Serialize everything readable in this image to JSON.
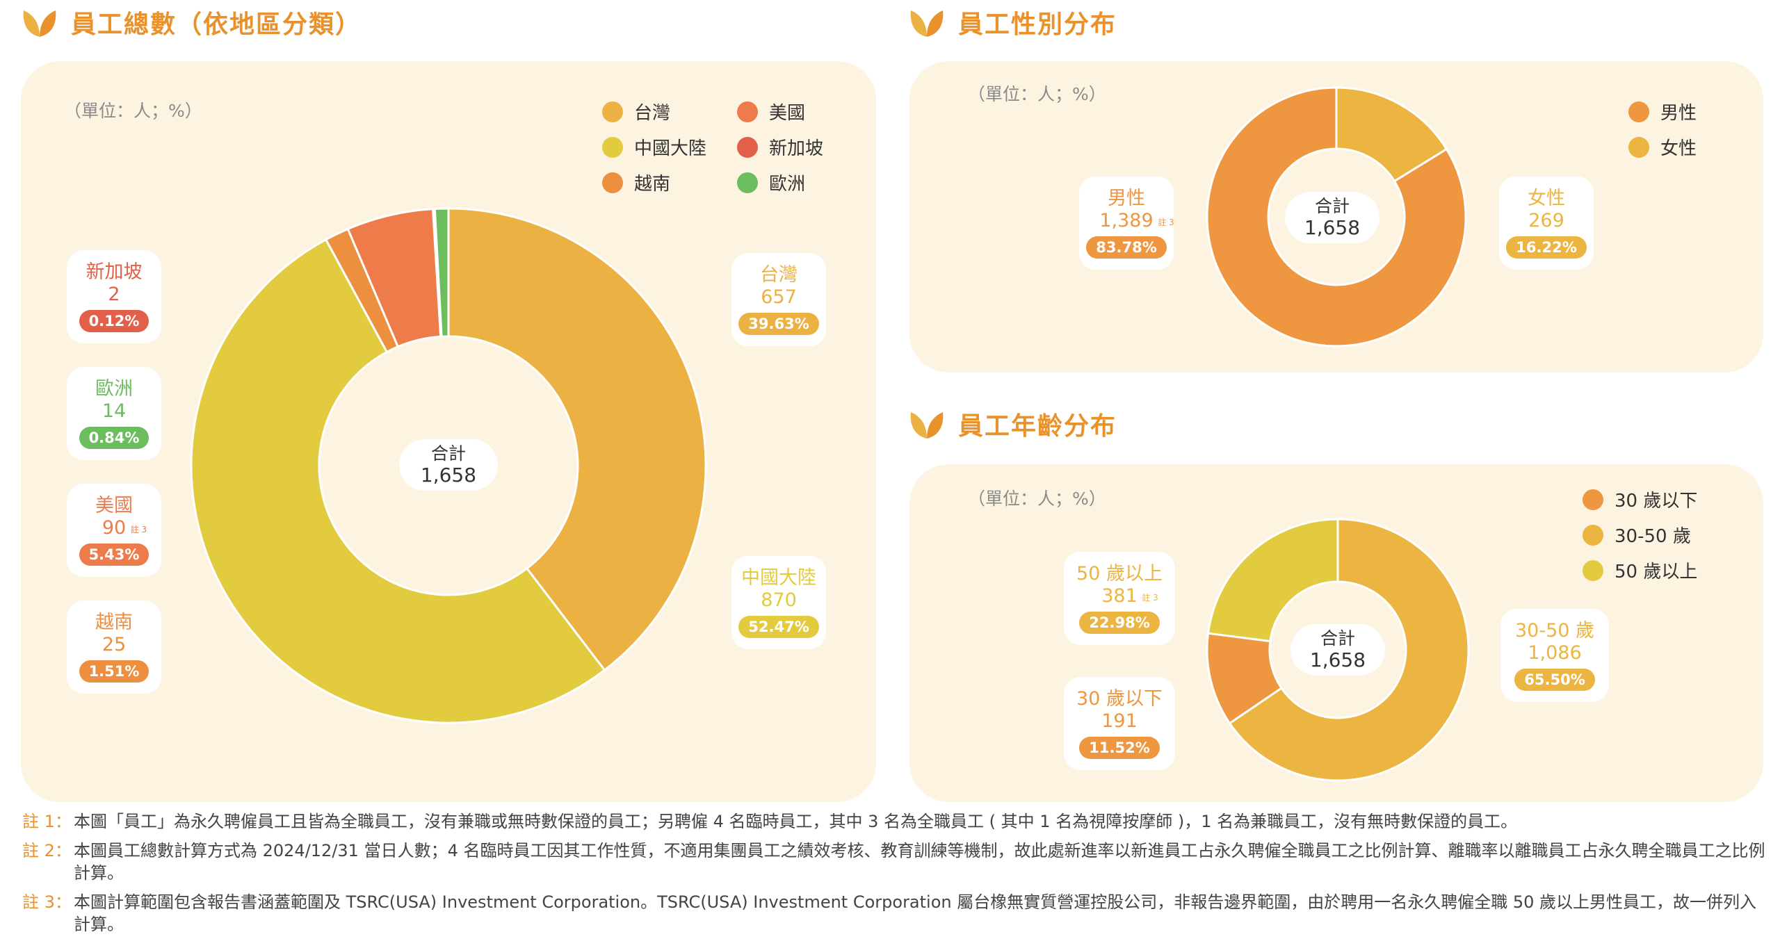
{
  "titles": {
    "region": "員工總數（依地區分類）",
    "gender": "員工性別分布",
    "age": "員工年齡分布"
  },
  "unit_note": "（單位：人；%）",
  "center": {
    "title": "合計",
    "total": "1,658"
  },
  "colors": {
    "accent": "#e9922b",
    "panel": "#fdf3e1",
    "taiwan": "#ebb142",
    "china": "#e3cb3f",
    "vietnam": "#ec8f3e",
    "usa": "#ee7c4b",
    "singapore": "#e2604a",
    "europe": "#6bbd5e",
    "male": "#ee9640",
    "female": "#ecb441",
    "age_under30": "#ee9640",
    "age_30_50": "#ecb441",
    "age_over50": "#e3cb3f"
  },
  "region_legend": [
    "台灣",
    "美國",
    "中國大陸",
    "新加坡",
    "越南",
    "歐洲"
  ],
  "gender_legend": [
    "男性",
    "女性"
  ],
  "age_legend": [
    "30 歲以下",
    "30-50 歲",
    "50 歲以上"
  ],
  "region_callouts": {
    "singapore": {
      "name": "新加坡",
      "count": "2",
      "pct": "0.12%"
    },
    "europe": {
      "name": "歐洲",
      "count": "14",
      "pct": "0.84%"
    },
    "usa": {
      "name": "美國",
      "count": "90",
      "pct": "5.43%",
      "note": "註 3"
    },
    "vietnam": {
      "name": "越南",
      "count": "25",
      "pct": "1.51%"
    },
    "taiwan": {
      "name": "台灣",
      "count": "657",
      "pct": "39.63%"
    },
    "china": {
      "name": "中國大陸",
      "count": "870",
      "pct": "52.47%"
    }
  },
  "gender_callouts": {
    "male": {
      "name": "男性",
      "count": "1,389",
      "pct": "83.78%",
      "note": "註 3"
    },
    "female": {
      "name": "女性",
      "count": "269",
      "pct": "16.22%"
    }
  },
  "age_callouts": {
    "over50": {
      "name": "50 歲以上",
      "count": "381",
      "pct": "22.98%",
      "note": "註 3"
    },
    "under30": {
      "name": "30 歲以下",
      "count": "191",
      "pct": "11.52%"
    },
    "mid": {
      "name": "30-50 歲",
      "count": "1,086",
      "pct": "65.50%"
    }
  },
  "chart_data": [
    {
      "type": "pie",
      "title": "員工總數（依地區分類）",
      "unit": "（單位：人；%）",
      "categories": [
        "台灣",
        "中國大陸",
        "越南",
        "美國",
        "新加坡",
        "歐洲"
      ],
      "values": [
        657,
        870,
        25,
        90,
        2,
        14
      ],
      "percentages": [
        39.63,
        52.47,
        1.51,
        5.43,
        0.12,
        0.84
      ],
      "total": 1658
    },
    {
      "type": "pie",
      "title": "員工性別分布",
      "unit": "（單位：人；%）",
      "categories": [
        "女性",
        "男性"
      ],
      "values": [
        269,
        1389
      ],
      "percentages": [
        16.22,
        83.78
      ],
      "total": 1658
    },
    {
      "type": "pie",
      "title": "員工年齡分布",
      "unit": "（單位：人；%）",
      "categories": [
        "30-50 歲",
        "30 歲以下",
        "50 歲以上"
      ],
      "values": [
        1086,
        191,
        381
      ],
      "percentages": [
        65.5,
        11.52,
        22.98
      ],
      "total": 1658
    }
  ],
  "footnotes": [
    {
      "tag": "註 1：",
      "text": "本圖「員工」為永久聘僱員工且皆為全職員工，沒有兼職或無時數保證的員工；另聘僱 4 名臨時員工，其中 3 名為全職員工 ( 其中 1 名為視障按摩師 )，1 名為兼職員工，沒有無時數保證的員工。"
    },
    {
      "tag": "註 2：",
      "text": "本圖員工總數計算方式為 2024/12/31 當日人數；4 名臨時員工因其工作性質，不適用集團員工之績效考核、教育訓練等機制，故此處新進率以新進員工占永久聘僱全職員工之比例計算、離職率以離職員工占永久聘全職員工之比例計算。"
    },
    {
      "tag": "註 3：",
      "text": "本圖計算範圍包含報告書涵蓋範圍及 TSRC(USA) Investment Corporation。TSRC(USA) Investment Corporation 屬台橡無實質營運控股公司，非報告邊界範圍，由於聘用一名永久聘僱全職 50 歲以上男性員工，故一併列入計算。"
    }
  ]
}
